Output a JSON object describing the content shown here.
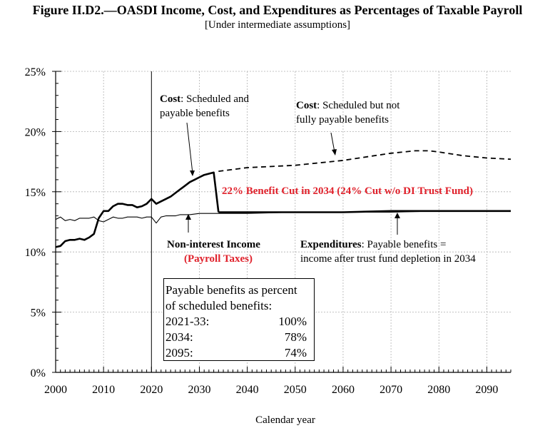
{
  "title": "Figure II.D2.—OASDI Income, Cost, and Expenditures as Percentages of Taxable Payroll",
  "subtitle": "[Under intermediate assumptions]",
  "annotations": {
    "cost_sched_bold": "Cost",
    "cost_sched_line1": ": Scheduled and",
    "cost_sched_line2": "payable benefits",
    "cost_nfp_bold": "Cost",
    "cost_nfp_line1": ": Scheduled but not",
    "cost_nfp_line2": "fully payable benefits",
    "benefit_cut": "22% Benefit Cut in 2034  (24% Cut w/o DI Trust Fund)",
    "income_line1": "Non-interest Income",
    "income_line2": "(Payroll Taxes)",
    "exp_bold": "Expenditures",
    "exp_line1": ": Payable benefits =",
    "exp_line2": "income after trust fund depletion in 2034"
  },
  "inset": {
    "line1": "Payable benefits as percent",
    "line2": "of scheduled benefits:",
    "rows": [
      {
        "label": "2021-33:",
        "value": "100%"
      },
      {
        "label": "2034:",
        "value": "78%"
      },
      {
        "label": "2095:",
        "value": "74%"
      }
    ]
  },
  "colors": {
    "annotation_red": "#e0212b",
    "line": "#000000",
    "grid": "#b0b0b0"
  },
  "chart_data": {
    "type": "line",
    "title": "Figure II.D2.—OASDI Income, Cost, and Expenditures as Percentages of Taxable Payroll",
    "subtitle": "[Under intermediate assumptions]",
    "xlabel": "Calendar year",
    "ylabel": "",
    "xlim": [
      2000,
      2095
    ],
    "ylim": [
      0,
      25
    ],
    "x_ticks": [
      2000,
      2010,
      2020,
      2030,
      2040,
      2050,
      2060,
      2070,
      2080,
      2090
    ],
    "y_ticks": [
      "0%",
      "5%",
      "10%",
      "15%",
      "20%",
      "25%"
    ],
    "grid": true,
    "vertical_reference_year": 2020,
    "series": [
      {
        "name": "Cost: Scheduled and payable benefits",
        "style": "solid-bold",
        "x": [
          2000,
          2001,
          2002,
          2003,
          2004,
          2005,
          2006,
          2007,
          2008,
          2009,
          2010,
          2011,
          2012,
          2013,
          2014,
          2015,
          2016,
          2017,
          2018,
          2019,
          2020,
          2021,
          2022,
          2023,
          2024,
          2025,
          2026,
          2027,
          2028,
          2029,
          2030,
          2031,
          2032,
          2033,
          2034
        ],
        "values": [
          10.4,
          10.5,
          10.9,
          11.0,
          11.0,
          11.1,
          11.0,
          11.2,
          11.5,
          12.8,
          13.4,
          13.4,
          13.8,
          14.0,
          14.0,
          13.9,
          13.9,
          13.7,
          13.8,
          14.0,
          14.4,
          14.0,
          14.2,
          14.4,
          14.6,
          14.9,
          15.2,
          15.5,
          15.8,
          16.0,
          16.2,
          16.4,
          16.5,
          16.6,
          13.3
        ]
      },
      {
        "name": "Cost: Scheduled but not fully payable benefits",
        "style": "dashed",
        "x": [
          2034,
          2040,
          2045,
          2050,
          2055,
          2060,
          2065,
          2070,
          2075,
          2078,
          2080,
          2085,
          2090,
          2095
        ],
        "values": [
          16.7,
          17.0,
          17.1,
          17.2,
          17.4,
          17.6,
          17.9,
          18.2,
          18.4,
          18.4,
          18.3,
          18.0,
          17.8,
          17.7
        ]
      },
      {
        "name": "Expenditures: Payable benefits = income after trust fund depletion in 2034",
        "style": "solid-bold",
        "x": [
          2034,
          2040,
          2050,
          2060,
          2070,
          2080,
          2090,
          2095
        ],
        "values": [
          13.3,
          13.3,
          13.3,
          13.3,
          13.4,
          13.4,
          13.4,
          13.4
        ]
      },
      {
        "name": "Non-interest Income (Payroll Taxes)",
        "style": "solid-thin",
        "x": [
          2000,
          2001,
          2002,
          2003,
          2004,
          2005,
          2006,
          2007,
          2008,
          2009,
          2010,
          2011,
          2012,
          2013,
          2014,
          2015,
          2016,
          2017,
          2018,
          2019,
          2020,
          2021,
          2022,
          2023,
          2024,
          2025,
          2026,
          2027,
          2028,
          2030,
          2035,
          2040,
          2050,
          2060,
          2070,
          2080,
          2090,
          2095
        ],
        "values": [
          12.7,
          12.9,
          12.6,
          12.7,
          12.6,
          12.8,
          12.8,
          12.8,
          12.9,
          12.6,
          12.5,
          12.7,
          12.9,
          12.8,
          12.8,
          12.9,
          12.9,
          12.9,
          12.8,
          12.9,
          12.9,
          12.4,
          12.9,
          13.0,
          13.0,
          13.0,
          13.1,
          13.1,
          13.1,
          13.2,
          13.2,
          13.2,
          13.3,
          13.3,
          13.3,
          13.4,
          13.4,
          13.4
        ]
      }
    ]
  }
}
